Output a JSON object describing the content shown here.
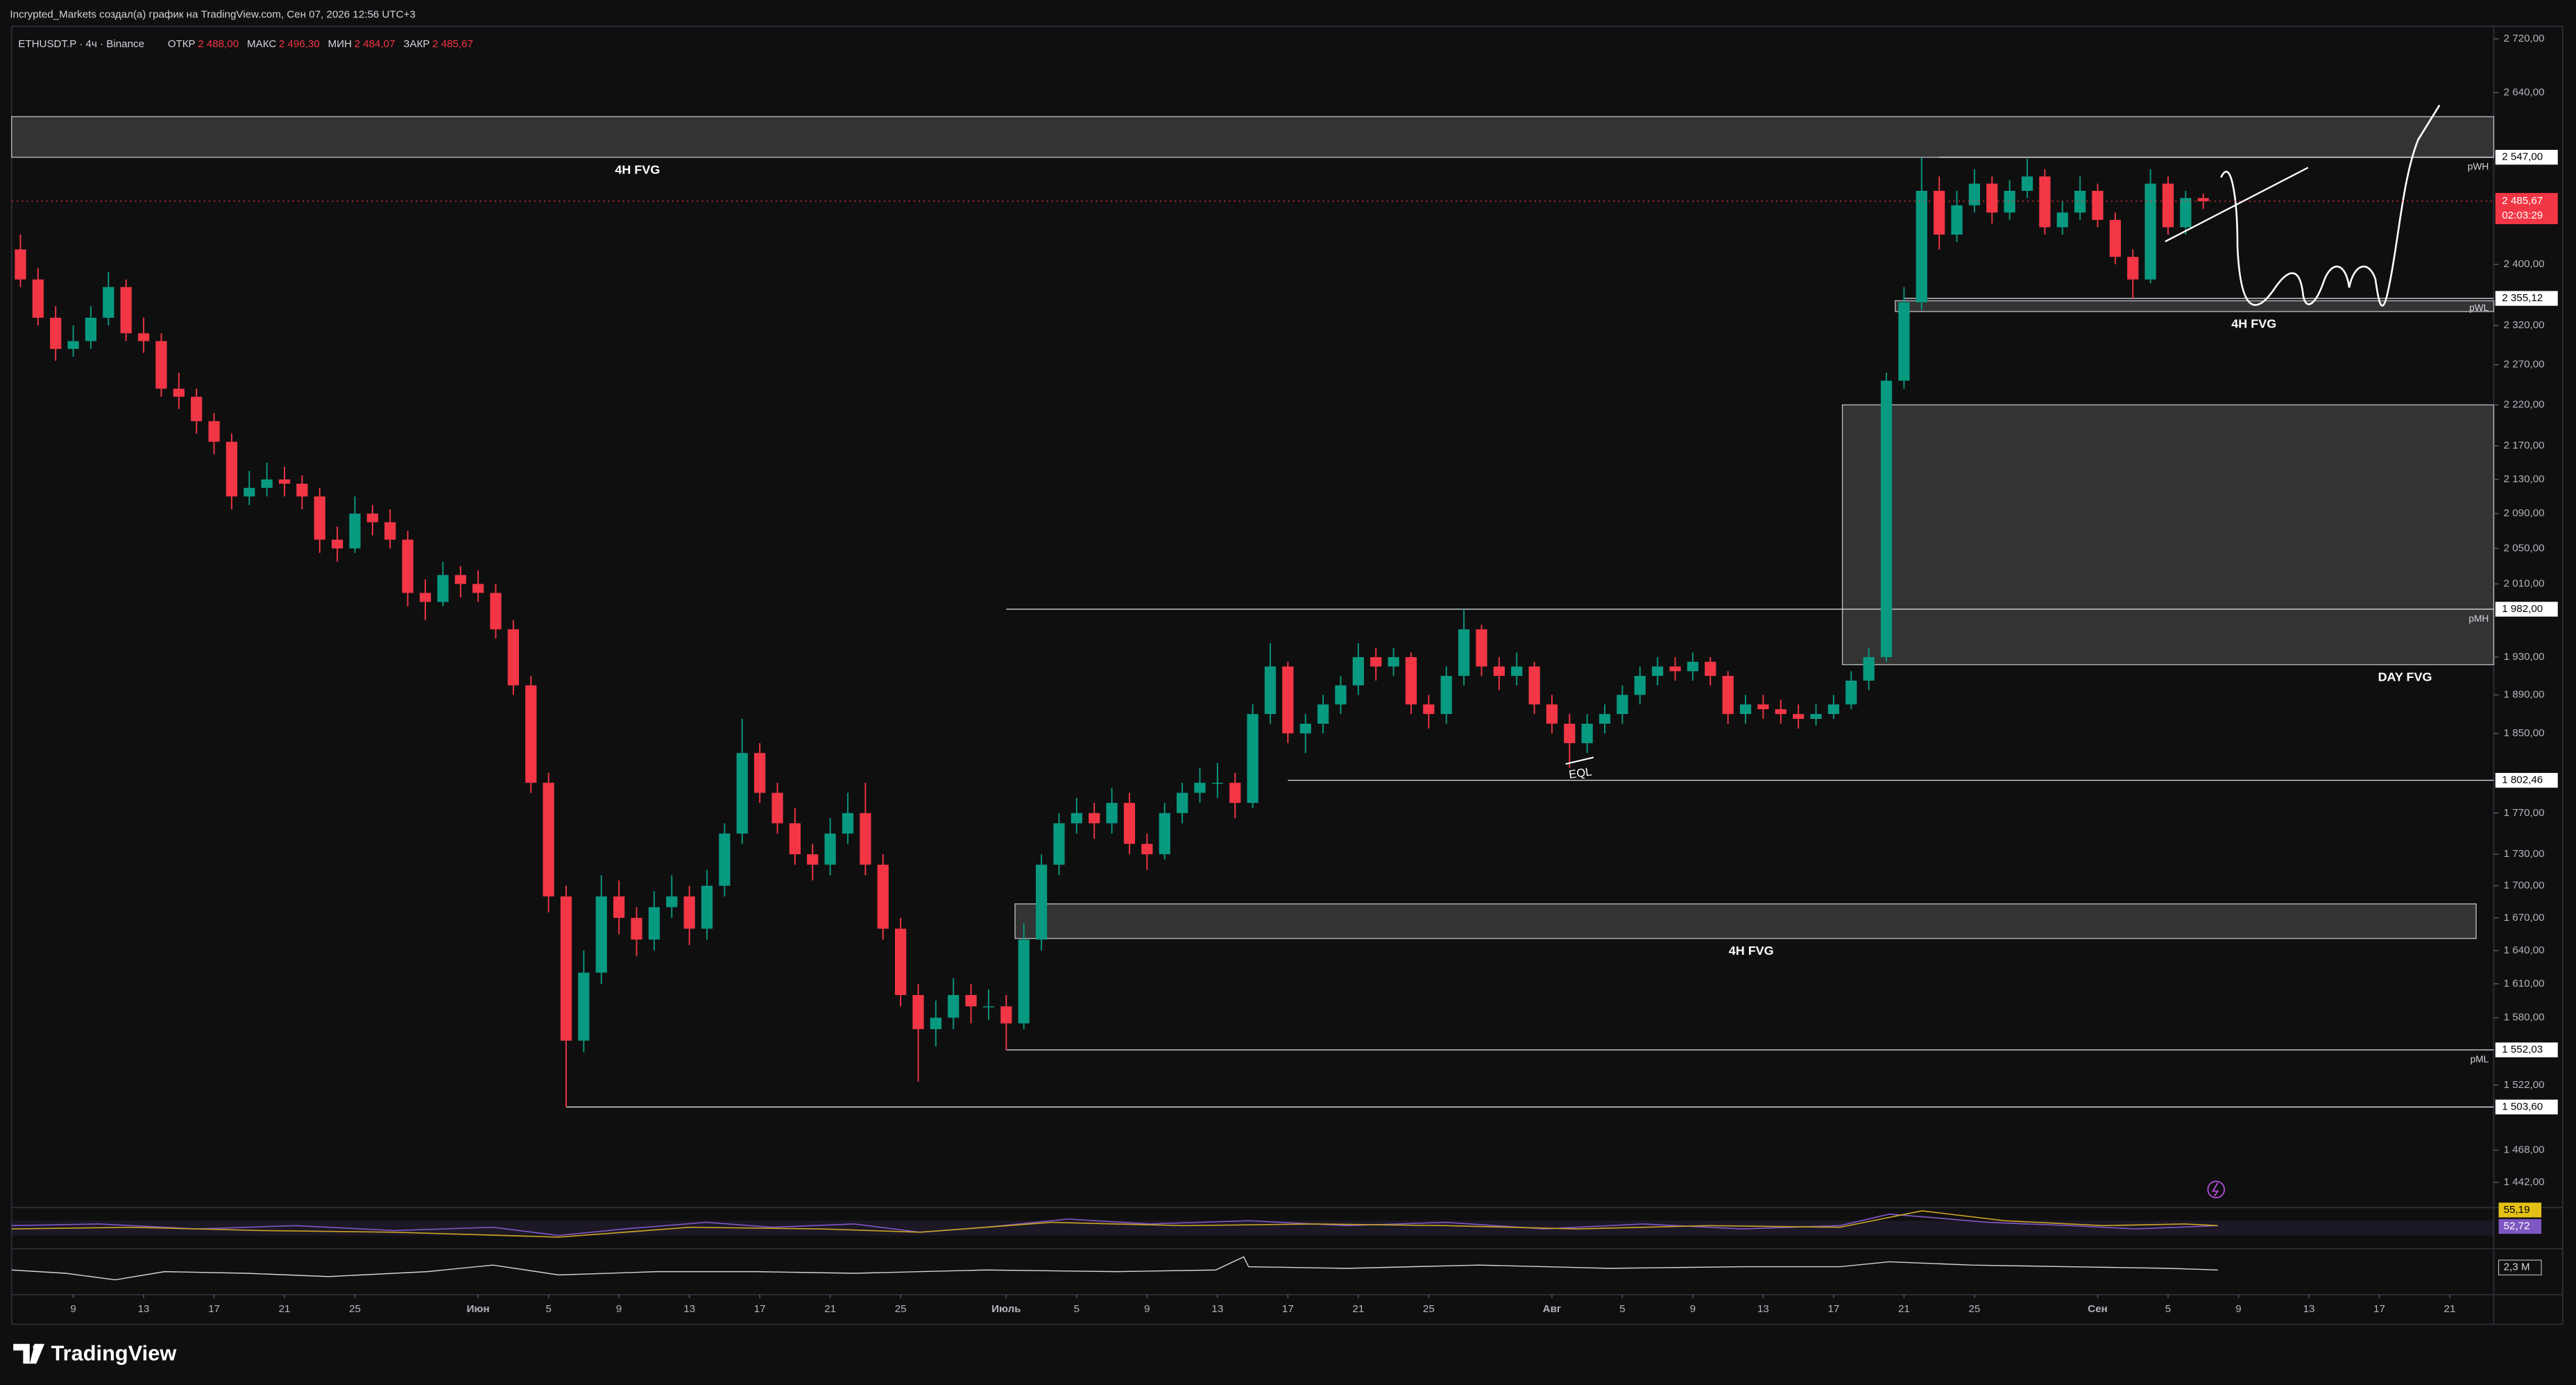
{
  "header": {
    "attribution": "Incrypted_Markets создал(а) график на TradingView.com, Сен 07, 2026 12:56 UTC+3",
    "symbol": "ETHUSDT.P · 4ч · Binance",
    "ohlc": [
      {
        "label": "ОТКР",
        "value": "2 488,00"
      },
      {
        "label": "МАКС",
        "value": "2 496,30"
      },
      {
        "label": "МИН",
        "value": "2 484,07"
      },
      {
        "label": "ЗАКР",
        "value": "2 485,67"
      }
    ]
  },
  "chart_data": {
    "type": "candlestick",
    "log_scale": true,
    "grid": false,
    "colors": {
      "up": "#089981",
      "down": "#f23645"
    },
    "x": [
      "05-06",
      "05-07",
      "05-08",
      "05-09",
      "05-10",
      "05-11",
      "05-12",
      "05-13",
      "05-14",
      "05-15",
      "05-16",
      "05-17",
      "05-18",
      "05-19",
      "05-20",
      "05-21",
      "05-22",
      "05-23",
      "05-24",
      "05-25",
      "05-26",
      "05-27",
      "05-28",
      "05-29",
      "05-30",
      "05-31",
      "06-01",
      "06-02",
      "06-03",
      "06-04",
      "06-05",
      "06-06",
      "06-07",
      "06-08",
      "06-09",
      "06-10",
      "06-11",
      "06-12",
      "06-13",
      "06-14",
      "06-15",
      "06-16",
      "06-17",
      "06-18",
      "06-19",
      "06-20",
      "06-21",
      "06-22",
      "06-23",
      "06-24",
      "06-25",
      "06-26",
      "06-27",
      "06-28",
      "06-29",
      "06-30",
      "07-01",
      "07-02",
      "07-03",
      "07-04",
      "07-05",
      "07-06",
      "07-07",
      "07-08",
      "07-09",
      "07-10",
      "07-11",
      "07-12",
      "07-13",
      "07-14",
      "07-15",
      "07-16",
      "07-17",
      "07-18",
      "07-19",
      "07-20",
      "07-21",
      "07-22",
      "07-23",
      "07-24",
      "07-25",
      "07-26",
      "07-27",
      "07-28",
      "07-29",
      "07-30",
      "07-31",
      "08-01",
      "08-02",
      "08-03",
      "08-04",
      "08-05",
      "08-06",
      "08-07",
      "08-08",
      "08-09",
      "08-10",
      "08-11",
      "08-12",
      "08-13",
      "08-14",
      "08-15",
      "08-16",
      "08-17",
      "08-18",
      "08-19",
      "08-20",
      "08-21",
      "08-22",
      "08-23",
      "08-24",
      "08-25",
      "08-26",
      "08-27",
      "08-28",
      "08-29",
      "08-30",
      "08-31",
      "09-01",
      "09-02",
      "09-03",
      "09-04",
      "09-05",
      "09-06",
      "09-07"
    ],
    "open": [
      2420,
      2380,
      2330,
      2290,
      2300,
      2330,
      2370,
      2310,
      2300,
      2240,
      2230,
      2200,
      2175,
      2110,
      2120,
      2130,
      2125,
      2110,
      2060,
      2050,
      2090,
      2080,
      2060,
      2000,
      1990,
      2020,
      2010,
      2000,
      1960,
      1900,
      1800,
      1690,
      1560,
      1620,
      1690,
      1670,
      1650,
      1680,
      1690,
      1660,
      1700,
      1750,
      1830,
      1790,
      1760,
      1730,
      1720,
      1750,
      1770,
      1720,
      1660,
      1600,
      1570,
      1580,
      1600,
      1590,
      1590,
      1575,
      1650,
      1720,
      1760,
      1770,
      1760,
      1780,
      1740,
      1730,
      1770,
      1790,
      1800,
      1800,
      1780,
      1870,
      1920,
      1850,
      1860,
      1880,
      1900,
      1930,
      1920,
      1930,
      1880,
      1870,
      1910,
      1960,
      1920,
      1910,
      1920,
      1880,
      1860,
      1840,
      1860,
      1870,
      1890,
      1910,
      1920,
      1915,
      1925,
      1910,
      1870,
      1880,
      1875,
      1870,
      1865,
      1870,
      1880,
      1905,
      1930,
      2250,
      2350,
      2500,
      2440,
      2480,
      2510,
      2470,
      2500,
      2520,
      2450,
      2470,
      2500,
      2460,
      2410,
      2380,
      2510,
      2450,
      2490
    ],
    "high": [
      2440,
      2395,
      2345,
      2320,
      2345,
      2390,
      2380,
      2330,
      2310,
      2260,
      2240,
      2210,
      2185,
      2140,
      2150,
      2145,
      2135,
      2120,
      2075,
      2110,
      2100,
      2095,
      2070,
      2015,
      2035,
      2030,
      2025,
      2010,
      1970,
      1910,
      1810,
      1700,
      1640,
      1710,
      1705,
      1680,
      1695,
      1710,
      1700,
      1715,
      1760,
      1865,
      1840,
      1800,
      1775,
      1740,
      1765,
      1790,
      1800,
      1730,
      1670,
      1610,
      1595,
      1615,
      1610,
      1605,
      1600,
      1665,
      1730,
      1770,
      1785,
      1780,
      1795,
      1790,
      1750,
      1780,
      1800,
      1815,
      1820,
      1810,
      1880,
      1945,
      1925,
      1870,
      1890,
      1910,
      1945,
      1940,
      1940,
      1935,
      1890,
      1920,
      1982,
      1965,
      1930,
      1935,
      1925,
      1890,
      1870,
      1870,
      1880,
      1900,
      1920,
      1930,
      1930,
      1935,
      1930,
      1915,
      1890,
      1890,
      1885,
      1880,
      1880,
      1890,
      1915,
      1940,
      2260,
      2370,
      2547,
      2520,
      2500,
      2530,
      2520,
      2515,
      2545,
      2530,
      2485,
      2520,
      2510,
      2470,
      2420,
      2530,
      2520,
      2500,
      2496.3
    ],
    "low": [
      2370,
      2320,
      2275,
      2280,
      2290,
      2320,
      2300,
      2285,
      2230,
      2215,
      2185,
      2160,
      2095,
      2100,
      2110,
      2110,
      2095,
      2045,
      2035,
      2045,
      2065,
      2050,
      1985,
      1970,
      1985,
      1995,
      1990,
      1950,
      1890,
      1790,
      1675,
      1503.6,
      1550,
      1610,
      1655,
      1635,
      1640,
      1670,
      1645,
      1650,
      1690,
      1740,
      1780,
      1750,
      1720,
      1705,
      1710,
      1740,
      1710,
      1650,
      1590,
      1525,
      1555,
      1570,
      1575,
      1578,
      1552.03,
      1570,
      1640,
      1710,
      1750,
      1745,
      1750,
      1730,
      1715,
      1725,
      1760,
      1780,
      1785,
      1765,
      1775,
      1860,
      1840,
      1830,
      1850,
      1870,
      1890,
      1905,
      1910,
      1870,
      1855,
      1860,
      1900,
      1910,
      1895,
      1900,
      1870,
      1850,
      1815,
      1830,
      1850,
      1860,
      1880,
      1900,
      1905,
      1905,
      1900,
      1860,
      1860,
      1865,
      1860,
      1855,
      1858,
      1865,
      1875,
      1895,
      1925,
      2240,
      2340,
      2420,
      2430,
      2470,
      2455,
      2460,
      2490,
      2440,
      2440,
      2460,
      2450,
      2400,
      2355.12,
      2375,
      2440,
      2440,
      2475
    ],
    "close": [
      2380,
      2330,
      2290,
      2300,
      2330,
      2370,
      2310,
      2300,
      2240,
      2230,
      2200,
      2175,
      2110,
      2120,
      2130,
      2125,
      2110,
      2060,
      2050,
      2090,
      2080,
      2060,
      2000,
      1990,
      2020,
      2010,
      2000,
      1960,
      1900,
      1800,
      1690,
      1560,
      1620,
      1690,
      1670,
      1650,
      1680,
      1690,
      1660,
      1700,
      1750,
      1830,
      1790,
      1760,
      1730,
      1720,
      1750,
      1770,
      1720,
      1660,
      1600,
      1570,
      1580,
      1600,
      1590,
      1590,
      1575,
      1650,
      1720,
      1760,
      1770,
      1760,
      1780,
      1740,
      1730,
      1770,
      1790,
      1800,
      1800,
      1780,
      1870,
      1920,
      1850,
      1860,
      1880,
      1900,
      1930,
      1920,
      1930,
      1880,
      1870,
      1910,
      1960,
      1920,
      1910,
      1920,
      1880,
      1860,
      1840,
      1860,
      1870,
      1890,
      1910,
      1920,
      1915,
      1925,
      1910,
      1870,
      1880,
      1875,
      1870,
      1865,
      1870,
      1880,
      1905,
      1930,
      2250,
      2350,
      2500,
      2440,
      2480,
      2510,
      2470,
      2500,
      2520,
      2450,
      2470,
      2500,
      2460,
      2410,
      2380,
      2510,
      2450,
      2490,
      2485.67
    ],
    "xlim": [
      "05-06",
      "09-23"
    ],
    "xticks": [
      {
        "value": "05-09",
        "label": "9"
      },
      {
        "value": "05-13",
        "label": "13"
      },
      {
        "value": "05-17",
        "label": "17"
      },
      {
        "value": "05-21",
        "label": "21"
      },
      {
        "value": "05-25",
        "label": "25"
      },
      {
        "value": "06-01",
        "label": "Июн"
      },
      {
        "value": "06-05",
        "label": "5"
      },
      {
        "value": "06-09",
        "label": "9"
      },
      {
        "value": "06-13",
        "label": "13"
      },
      {
        "value": "06-17",
        "label": "17"
      },
      {
        "value": "06-21",
        "label": "21"
      },
      {
        "value": "06-25",
        "label": "25"
      },
      {
        "value": "07-01",
        "label": "Июль"
      },
      {
        "value": "07-05",
        "label": "5"
      },
      {
        "value": "07-09",
        "label": "9"
      },
      {
        "value": "07-13",
        "label": "13"
      },
      {
        "value": "07-17",
        "label": "17"
      },
      {
        "value": "07-21",
        "label": "21"
      },
      {
        "value": "07-25",
        "label": "25"
      },
      {
        "value": "08-01",
        "label": "Авг"
      },
      {
        "value": "08-05",
        "label": "5"
      },
      {
        "value": "08-09",
        "label": "9"
      },
      {
        "value": "08-13",
        "label": "13"
      },
      {
        "value": "08-17",
        "label": "17"
      },
      {
        "value": "08-21",
        "label": "21"
      },
      {
        "value": "08-25",
        "label": "25"
      },
      {
        "value": "09-01",
        "label": "Сен"
      },
      {
        "value": "09-05",
        "label": "5"
      },
      {
        "value": "09-09",
        "label": "9"
      },
      {
        "value": "09-13",
        "label": "13"
      },
      {
        "value": "09-17",
        "label": "17"
      },
      {
        "value": "09-21",
        "label": "21"
      }
    ],
    "ylim": [
      1422,
      2739
    ],
    "yticks": [
      {
        "value": 2720,
        "label": "2 720,00"
      },
      {
        "value": 2640,
        "label": "2 640,00"
      },
      {
        "value": 2400,
        "label": "2 400,00"
      },
      {
        "value": 2320,
        "label": "2 320,00"
      },
      {
        "value": 2270,
        "label": "2 270,00"
      },
      {
        "value": 2220,
        "label": "2 220,00"
      },
      {
        "value": 2170,
        "label": "2 170,00"
      },
      {
        "value": 2130,
        "label": "2 130,00"
      },
      {
        "value": 2090,
        "label": "2 090,00"
      },
      {
        "value": 2050,
        "label": "2 050,00"
      },
      {
        "value": 2010,
        "label": "2 010,00"
      },
      {
        "value": 1930,
        "label": "1 930,00"
      },
      {
        "value": 1890,
        "label": "1 890,00"
      },
      {
        "value": 1850,
        "label": "1 850,00"
      },
      {
        "value": 1770,
        "label": "1 770,00"
      },
      {
        "value": 1730,
        "label": "1 730,00"
      },
      {
        "value": 1700,
        "label": "1 700,00"
      },
      {
        "value": 1670,
        "label": "1 670,00"
      },
      {
        "value": 1640,
        "label": "1 640,00"
      },
      {
        "value": 1610,
        "label": "1 610,00"
      },
      {
        "value": 1580,
        "label": "1 580,00"
      },
      {
        "value": 1522,
        "label": "1 522,00"
      },
      {
        "value": 1468,
        "label": "1 468,00"
      },
      {
        "value": 1442,
        "label": "1 442,00"
      }
    ],
    "last_price": {
      "value": 2485.67,
      "label": "2 485,67",
      "countdown": "02:03:29"
    },
    "levels": [
      {
        "value": 2547,
        "label": "2 547,00",
        "tag": "pWH",
        "from": "08-23"
      },
      {
        "value": 2355.12,
        "label": "2 355,12",
        "tag": "pWL",
        "from": "08-21"
      },
      {
        "value": 1982,
        "label": "1 982,00",
        "tag": "pMH",
        "from": "07-01"
      },
      {
        "value": 1802.46,
        "label": "1 802,46",
        "from": "07-17"
      },
      {
        "value": 1552.03,
        "label": "1 552,03",
        "tag": "pML",
        "from": "07-01"
      },
      {
        "value": 1503.6,
        "label": "1 503,60",
        "from": "06-06"
      }
    ],
    "zones": [
      {
        "name": "4H FVG",
        "top": 2605,
        "bottom": 2547,
        "from": "05-06",
        "to": "09-23"
      },
      {
        "name": "4H FVG",
        "top": 2352,
        "bottom": 2338,
        "from": "08-21",
        "to": "09-23"
      },
      {
        "name": "DAY FVG",
        "top": 2220,
        "bottom": 1922,
        "from": "08-18",
        "to": "09-23"
      },
      {
        "name": "4H FVG",
        "top": 1683,
        "bottom": 1651,
        "from": "07-02",
        "to": "09-22"
      }
    ],
    "annotation": "EQL"
  },
  "indicators": {
    "rsi_labels": [
      "55,19",
      "52,72"
    ],
    "volume_label": "2,3 M"
  },
  "footer": {
    "logo": "TradingView"
  }
}
